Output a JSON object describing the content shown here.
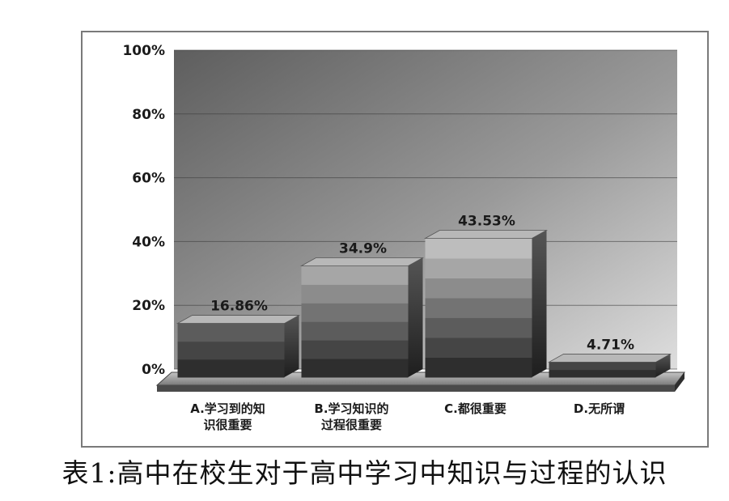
{
  "chart_data": {
    "type": "bar",
    "style": "3d-stacked-cylinder-grayscale",
    "categories": [
      [
        "A.学习到的知",
        "识很重要"
      ],
      [
        "B.学习知识的",
        "过程很重要"
      ],
      [
        "C.都很重要"
      ],
      [
        "D.无所谓"
      ]
    ],
    "values": [
      16.86,
      34.9,
      43.53,
      4.71
    ],
    "data_labels": [
      "16.86%",
      "34.9%",
      "43.53%",
      "4.71%"
    ],
    "ylim": [
      0,
      100
    ],
    "yticks": [
      "0%",
      "20%",
      "40%",
      "60%",
      "80%",
      "100%"
    ],
    "grid": true,
    "legend": "none"
  },
  "caption": "表1:高中在校生对于高中学习中知识与过程的认识",
  "colors": {
    "wall_dark": "#6a6a6a",
    "wall_light": "#d0d0d0",
    "bar_top": "#b4b4b4",
    "bar_bottom": "#3a3a3a",
    "floor": "#8a8a8a"
  }
}
